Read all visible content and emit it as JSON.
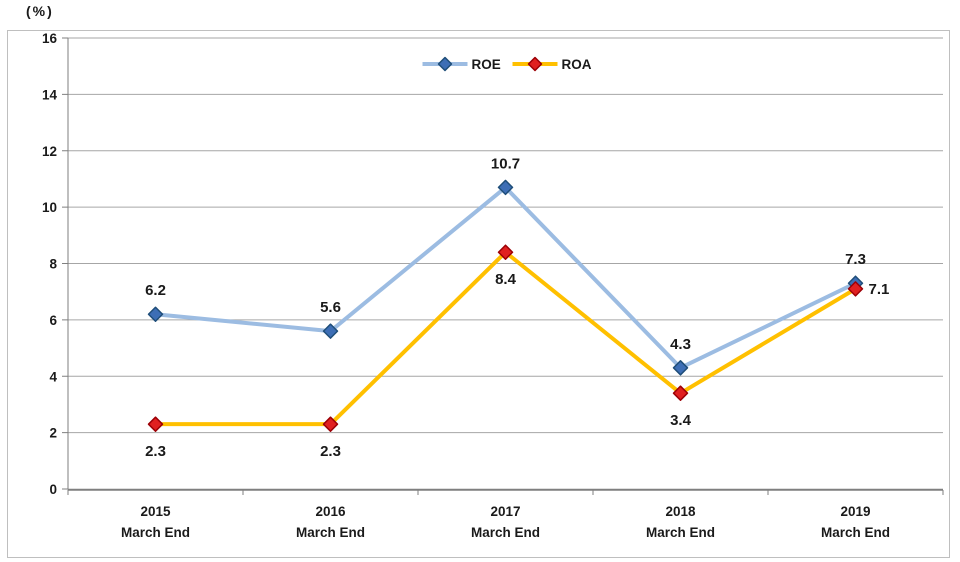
{
  "chart_data": {
    "type": "line",
    "title": "",
    "unit_label": "(%)",
    "xlabel": "",
    "ylabel": "(%)",
    "ylim": [
      0,
      16
    ],
    "ytick_step": 2,
    "yticks": [
      0,
      2,
      4,
      6,
      8,
      10,
      12,
      14,
      16
    ],
    "grid": true,
    "legend_position": "top-center",
    "categories": [
      {
        "year": "2015",
        "sub": "March End"
      },
      {
        "year": "2016",
        "sub": "March End"
      },
      {
        "year": "2017",
        "sub": "March End"
      },
      {
        "year": "2018",
        "sub": "March End"
      },
      {
        "year": "2019",
        "sub": "March End"
      }
    ],
    "series": [
      {
        "name": "ROE",
        "values": [
          6.2,
          5.6,
          10.7,
          4.3,
          7.3
        ],
        "label_positions": [
          "above",
          "above",
          "above",
          "above",
          "above"
        ],
        "line_color": "#9CBCE2",
        "marker_fill": "#3D6EB5",
        "marker_stroke": "#1F4E79"
      },
      {
        "name": "ROA",
        "values": [
          2.3,
          2.3,
          8.4,
          3.4,
          7.1
        ],
        "label_positions": [
          "below",
          "below",
          "below",
          "below",
          "right"
        ],
        "line_color": "#FFC000",
        "marker_fill": "#E02020",
        "marker_stroke": "#9C0006"
      }
    ],
    "colors": {
      "gridline": "#A6A6A6",
      "axis": "#7F7F7F",
      "border": "#BFBFBF",
      "tick_text": "#1A1A1A",
      "data_label_text": "#1A1A1A"
    }
  }
}
